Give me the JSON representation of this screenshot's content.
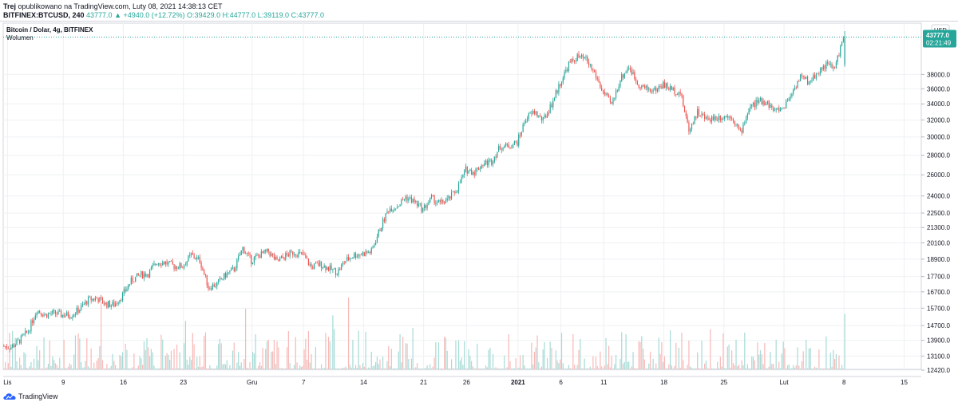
{
  "header": {
    "line1_author": "Trej",
    "line1_rest": "opublikowano na TradingView.com, Luty 08, 2021 14:38:13 CET",
    "symbol": "BITFINEX:BTCUSD, 240",
    "change": "43777.0 ▲ +4940.0 (+12.72%)",
    "ohlc": "O:39429.0 H:44777.0 L:39119.0 C:43777.0"
  },
  "legend": {
    "title": "Bitcoin / Dolar, 4g, BITFINEX",
    "volume": "Wolumen"
  },
  "price_scale": {
    "currency": "USD",
    "current_price": "43777.0",
    "countdown": "02:21:49",
    "ticks": [
      "38000.0",
      "36000.0",
      "34000.0",
      "32000.0",
      "30000.0",
      "28000.0",
      "26000.0",
      "24000.0",
      "22500.0",
      "21300.0",
      "20100.0",
      "18900.0",
      "17700.0",
      "16700.0",
      "15700.0",
      "14700.0",
      "13900.0",
      "13100.0",
      "12420.0"
    ]
  },
  "footer": {
    "brand": "TradingView"
  },
  "colors": {
    "up": "#26a69a",
    "down": "#ef5350",
    "vol_up": "#a6dbd6",
    "vol_down": "#f8b9b8",
    "grid": "#eef0f3",
    "axis": "#d1d4dc"
  },
  "chart_data": {
    "type": "candlestick",
    "title": "Bitcoin / Dolar, 4g, BITFINEX",
    "interval": "4h",
    "y_scale": "log",
    "ylim": [
      12420,
      44777
    ],
    "y_ticks": [
      38000,
      36000,
      34000,
      32000,
      30000,
      28000,
      26000,
      24000,
      22500,
      21300,
      20100,
      18900,
      17700,
      16700,
      15700,
      14700,
      13900,
      13100,
      12420
    ],
    "x_ticks": [
      "Lis",
      "9",
      "16",
      "23",
      "Gru",
      "7",
      "14",
      "21",
      "26",
      "2021",
      "6",
      "11",
      "18",
      "25",
      "Lut",
      "8",
      "15"
    ],
    "x_range": [
      "2020-11-02",
      "2021-02-17"
    ],
    "close_path": [
      [
        "2020-11-02",
        13600
      ],
      [
        "2020-11-03",
        13550
      ],
      [
        "2020-11-04",
        13900
      ],
      [
        "2020-11-05",
        14400
      ],
      [
        "2020-11-06",
        15600
      ],
      [
        "2020-11-07",
        15300
      ],
      [
        "2020-11-08",
        15400
      ],
      [
        "2020-11-09",
        15300
      ],
      [
        "2020-11-10",
        15300
      ],
      [
        "2020-11-11",
        15650
      ],
      [
        "2020-11-12",
        16200
      ],
      [
        "2020-11-13",
        16300
      ],
      [
        "2020-11-14",
        15950
      ],
      [
        "2020-11-15",
        15900
      ],
      [
        "2020-11-16",
        16500
      ],
      [
        "2020-11-17",
        17400
      ],
      [
        "2020-11-18",
        17800
      ],
      [
        "2020-11-19",
        17900
      ],
      [
        "2020-11-20",
        18700
      ],
      [
        "2020-11-21",
        18650
      ],
      [
        "2020-11-22",
        18400
      ],
      [
        "2020-11-23",
        18400
      ],
      [
        "2020-11-24",
        19200
      ],
      [
        "2020-11-25",
        18800
      ],
      [
        "2020-11-26",
        17000
      ],
      [
        "2020-11-27",
        17200
      ],
      [
        "2020-11-28",
        17800
      ],
      [
        "2020-11-29",
        18200
      ],
      [
        "2020-11-30",
        19700
      ],
      [
        "2020-12-01",
        18800
      ],
      [
        "2020-12-02",
        19200
      ],
      [
        "2020-12-03",
        19450
      ],
      [
        "2020-12-04",
        18700
      ],
      [
        "2020-12-05",
        19150
      ],
      [
        "2020-12-06",
        19400
      ],
      [
        "2020-12-07",
        19200
      ],
      [
        "2020-12-08",
        18350
      ],
      [
        "2020-12-09",
        18550
      ],
      [
        "2020-12-10",
        18250
      ],
      [
        "2020-12-11",
        18000
      ],
      [
        "2020-12-12",
        18800
      ],
      [
        "2020-12-13",
        19200
      ],
      [
        "2020-12-14",
        19300
      ],
      [
        "2020-12-15",
        19450
      ],
      [
        "2020-12-16",
        21200
      ],
      [
        "2020-12-17",
        22850
      ],
      [
        "2020-12-18",
        23100
      ],
      [
        "2020-12-19",
        23900
      ],
      [
        "2020-12-20",
        23500
      ],
      [
        "2020-12-21",
        22800
      ],
      [
        "2020-12-22",
        23800
      ],
      [
        "2020-12-23",
        23300
      ],
      [
        "2020-12-24",
        23700
      ],
      [
        "2020-12-25",
        24700
      ],
      [
        "2020-12-26",
        26500
      ],
      [
        "2020-12-27",
        26300
      ],
      [
        "2020-12-28",
        27100
      ],
      [
        "2020-12-29",
        27400
      ],
      [
        "2020-12-30",
        28900
      ],
      [
        "2020-12-31",
        29000
      ],
      [
        "2021-01-01",
        29400
      ],
      [
        "2021-01-02",
        32200
      ],
      [
        "2021-01-03",
        33000
      ],
      [
        "2021-01-04",
        31900
      ],
      [
        "2021-01-05",
        34000
      ],
      [
        "2021-01-06",
        36800
      ],
      [
        "2021-01-07",
        39500
      ],
      [
        "2021-01-08",
        40600
      ],
      [
        "2021-01-09",
        40200
      ],
      [
        "2021-01-10",
        38200
      ],
      [
        "2021-01-11",
        35500
      ],
      [
        "2021-01-12",
        33900
      ],
      [
        "2021-01-13",
        37300
      ],
      [
        "2021-01-14",
        39200
      ],
      [
        "2021-01-15",
        36800
      ],
      [
        "2021-01-16",
        36000
      ],
      [
        "2021-01-17",
        35800
      ],
      [
        "2021-01-18",
        36600
      ],
      [
        "2021-01-19",
        35900
      ],
      [
        "2021-01-20",
        35500
      ],
      [
        "2021-01-21",
        30800
      ],
      [
        "2021-01-22",
        33000
      ],
      [
        "2021-01-23",
        32100
      ],
      [
        "2021-01-24",
        32300
      ],
      [
        "2021-01-25",
        32400
      ],
      [
        "2021-01-26",
        32500
      ],
      [
        "2021-01-27",
        30400
      ],
      [
        "2021-01-28",
        33400
      ],
      [
        "2021-01-29",
        34300
      ],
      [
        "2021-01-30",
        34300
      ],
      [
        "2021-01-31",
        33100
      ],
      [
        "2021-02-01",
        33500
      ],
      [
        "2021-02-02",
        35500
      ],
      [
        "2021-02-03",
        37700
      ],
      [
        "2021-02-04",
        36900
      ],
      [
        "2021-02-05",
        38300
      ],
      [
        "2021-02-06",
        39500
      ],
      [
        "2021-02-07",
        38900
      ],
      [
        "2021-02-08",
        43777
      ]
    ],
    "last": {
      "open": 39429.0,
      "high": 44777.0,
      "low": 39119.0,
      "close": 43777.0,
      "change": 4940.0,
      "change_pct": 12.72
    },
    "series": [
      {
        "name": "Wolumen"
      }
    ]
  }
}
